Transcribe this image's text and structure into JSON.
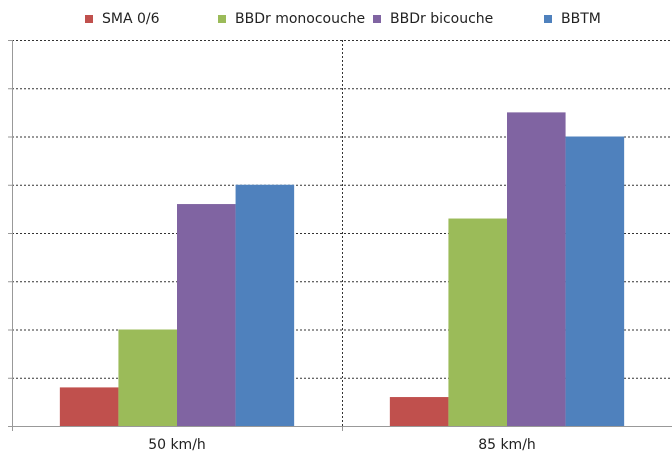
{
  "chart_data": {
    "type": "bar",
    "categories": [
      "50 km/h",
      "85 km/h"
    ],
    "series": [
      {
        "name": "SMA 0/6",
        "color": "#C0504D",
        "values": [
          0.8,
          0.6
        ]
      },
      {
        "name": "BBDr monocouche",
        "color": "#9BBB59",
        "values": [
          2.0,
          4.3
        ]
      },
      {
        "name": "BBDr bicouche",
        "color": "#8064A2",
        "values": [
          4.6,
          6.5
        ]
      },
      {
        "name": "BBTM",
        "color": "#4F81BD",
        "values": [
          5.0,
          6.0
        ]
      }
    ],
    "ylim": [
      0,
      8
    ],
    "grid": true,
    "legend_position": "top"
  }
}
